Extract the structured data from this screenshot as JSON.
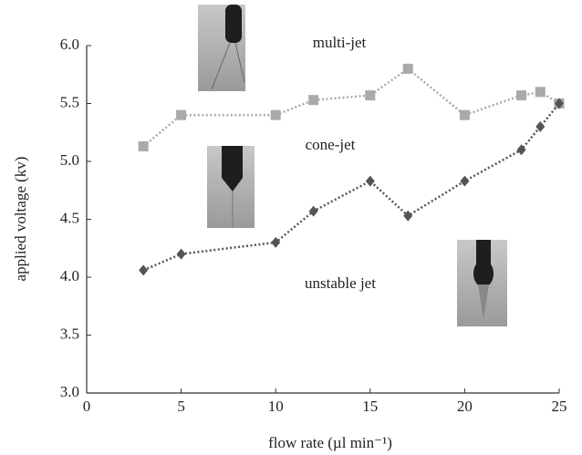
{
  "chart_data": {
    "type": "line",
    "x_label": "flow rate (µl min⁻¹)",
    "y_label": "applied voltage (kv)",
    "annotations": [
      "multi-jet",
      "cone-jet",
      "unstable jet"
    ],
    "x": [
      3,
      5,
      10,
      12,
      15,
      17,
      20,
      23,
      24,
      25
    ],
    "series": [
      {
        "color": "#aaaaaa",
        "marker": "square",
        "values": [
          5.13,
          5.4,
          5.4,
          5.53,
          5.57,
          5.8,
          5.4,
          5.57,
          5.6,
          5.5
        ]
      },
      {
        "color": "#555555",
        "marker": "diamond",
        "values": [
          4.06,
          4.2,
          4.3,
          4.57,
          4.83,
          4.53,
          4.83,
          5.1,
          5.3,
          5.5
        ]
      }
    ],
    "xlim": [
      0,
      25
    ],
    "xticks": [
      0,
      5,
      10,
      15,
      20,
      25
    ],
    "ylim": [
      3,
      6
    ],
    "yticks": [
      {
        "value": 3,
        "label": "3.0"
      },
      {
        "value": 3.5,
        "label": "3.5"
      },
      {
        "value": 4,
        "label": "4.0"
      },
      {
        "value": 4.5,
        "label": "4.5"
      },
      {
        "value": 5,
        "label": "5.0"
      },
      {
        "value": 5.5,
        "label": "5.5"
      },
      {
        "value": 6,
        "label": "6.0"
      }
    ],
    "grid": false
  }
}
